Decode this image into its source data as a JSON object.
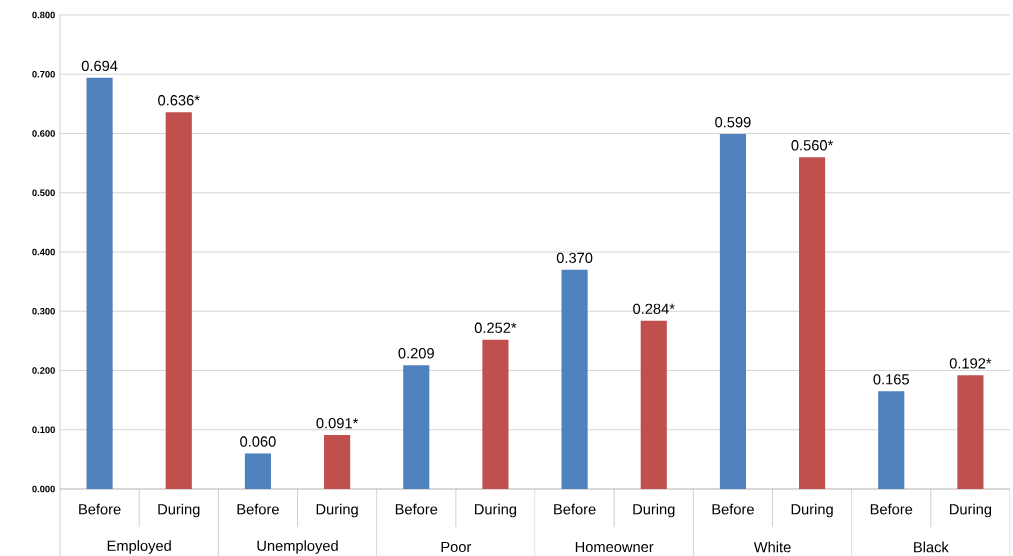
{
  "chart_data": {
    "type": "bar",
    "categories": [
      "Before",
      "During",
      "Before",
      "During",
      "Before",
      "During",
      "Before",
      "During",
      "Before",
      "During",
      "Before",
      "During"
    ],
    "values": [
      0.694,
      0.636,
      0.06,
      0.091,
      0.209,
      0.252,
      0.37,
      0.284,
      0.599,
      0.56,
      0.165,
      0.192
    ],
    "colors": [
      "#4f81bd",
      "#c0504d",
      "#4f81bd",
      "#c0504d",
      "#4f81bd",
      "#c0504d",
      "#4f81bd",
      "#c0504d",
      "#4f81bd",
      "#c0504d",
      "#4f81bd",
      "#c0504d"
    ],
    "value_labels": [
      "0.694",
      "0.636*",
      "0.060",
      "0.091*",
      "0.209",
      "0.252*",
      "0.370",
      "0.284*",
      "0.599",
      "0.560*",
      "0.165",
      "0.192*"
    ],
    "annotations": [
      "Employed",
      "Unemployed",
      "Poor",
      "Homeowner",
      "White",
      "Black"
    ],
    "ylim": [
      0,
      0.8
    ],
    "yticks": [
      {
        "value": 0,
        "label": "0.000"
      },
      {
        "value": 0.1,
        "label": "0.100"
      },
      {
        "value": 0.2,
        "label": "0.200"
      },
      {
        "value": 0.3,
        "label": "0.300"
      },
      {
        "value": 0.4,
        "label": "0.400"
      },
      {
        "value": 0.5,
        "label": "0.500"
      },
      {
        "value": 0.6,
        "label": "0.600"
      },
      {
        "value": 0.7,
        "label": "0.700"
      },
      {
        "value": 0.8,
        "label": "0.800"
      }
    ],
    "grid": "y"
  }
}
